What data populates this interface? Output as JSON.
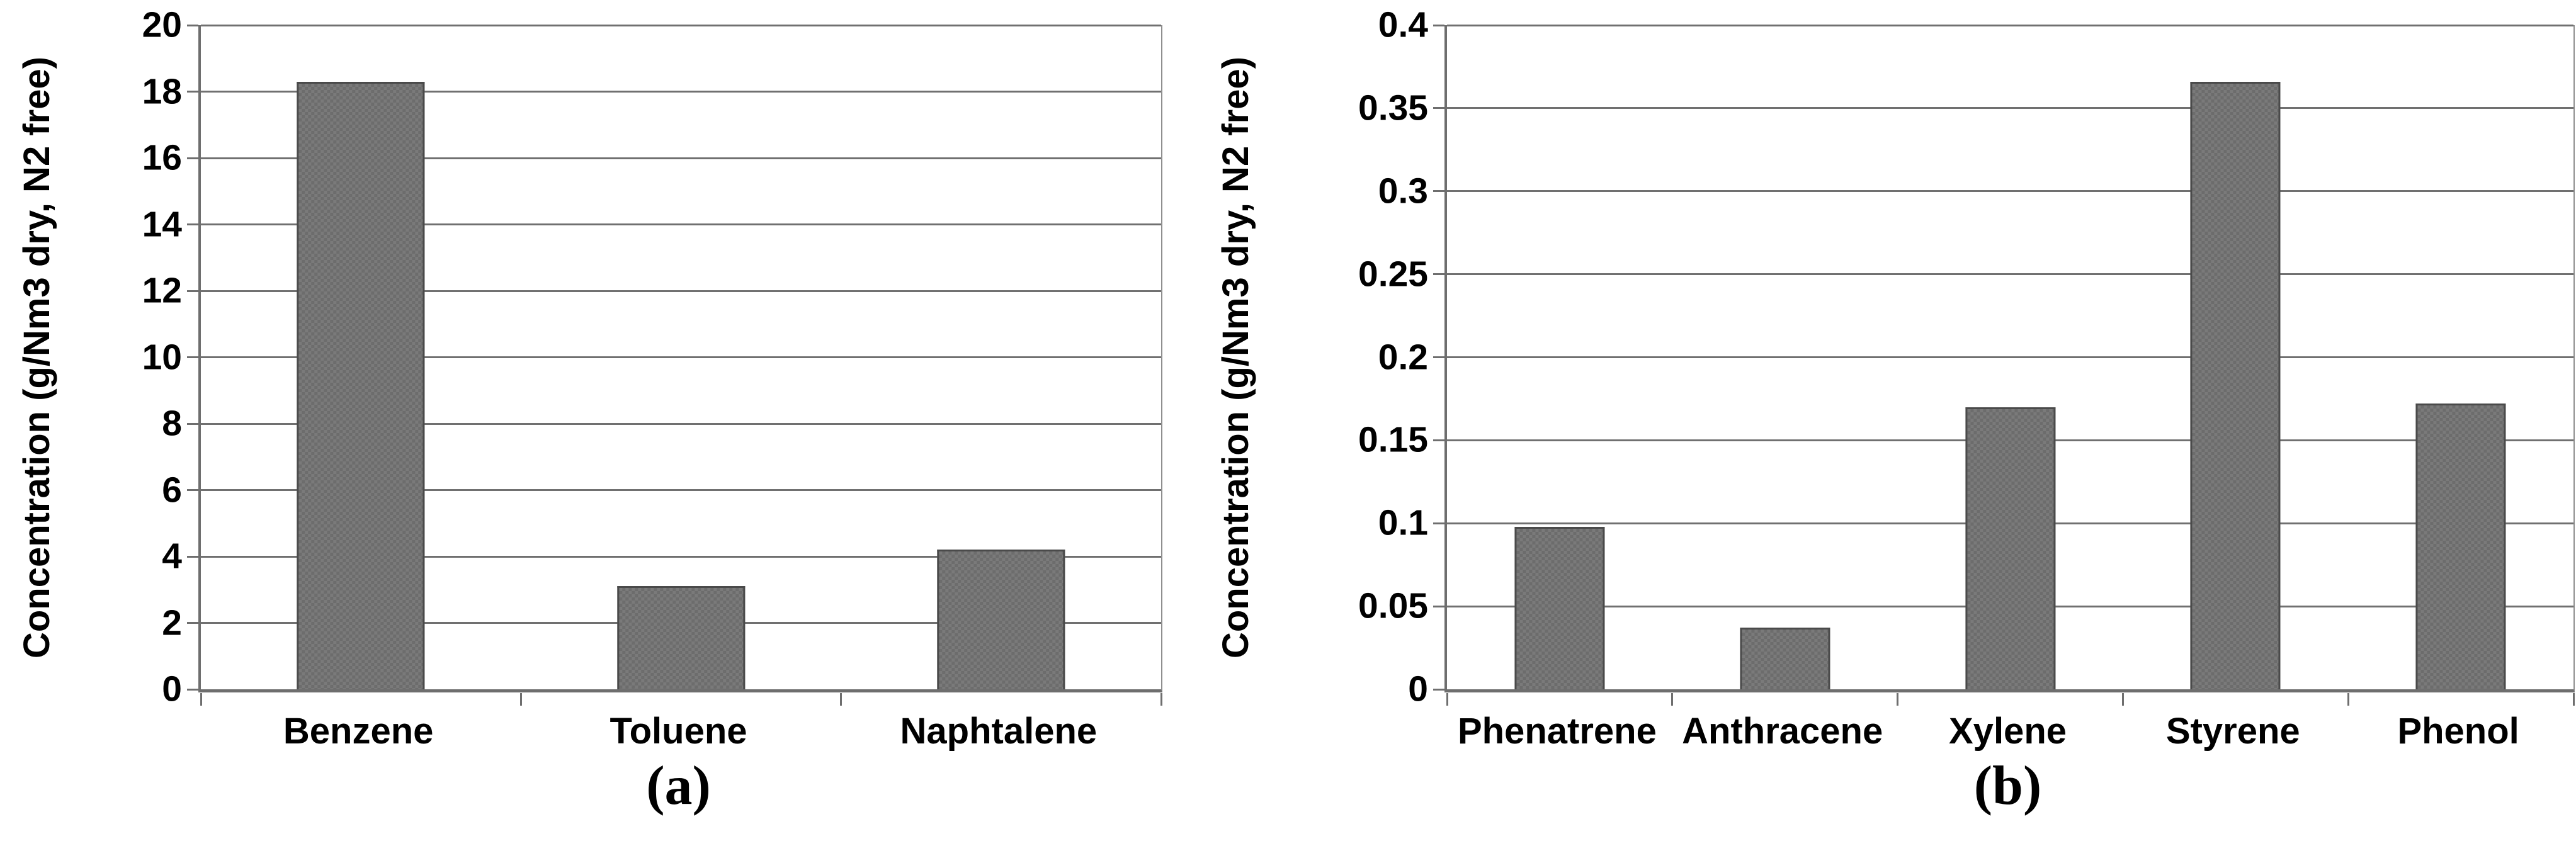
{
  "figure": {
    "background": "#ffffff",
    "bar_fill": "#7a7a7a",
    "bar_checker": "#6c6c6c",
    "bar_border": "#4a4a4a",
    "gridline_color": "#707070",
    "axis_color": "#6e6e6e",
    "text_color": "#000000"
  },
  "chart_data": [
    {
      "type": "bar",
      "panel": "a",
      "caption": "(a)",
      "title": "",
      "xlabel": "",
      "ylabel": "Concentration (g/Nm3 dry, N2 free)",
      "ylim": [
        0,
        20
      ],
      "ytick_step": 2,
      "yticks": [
        "0",
        "2",
        "4",
        "6",
        "8",
        "10",
        "12",
        "14",
        "16",
        "18",
        "20"
      ],
      "categories": [
        "Benzene",
        "Toluene",
        "Naphtalene"
      ],
      "values": [
        18.3,
        3.1,
        4.2
      ],
      "grid": true,
      "legend_position": "none"
    },
    {
      "type": "bar",
      "panel": "b",
      "caption": "(b)",
      "title": "",
      "xlabel": "",
      "ylabel": "Concentration (g/Nm3 dry, N2 free)",
      "ylim": [
        0,
        0.4
      ],
      "ytick_step": 0.05,
      "yticks": [
        "0",
        "0.05",
        "0.1",
        "0.15",
        "0.2",
        "0.25",
        "0.3",
        "0.35",
        "0.4"
      ],
      "categories": [
        "Phenatrene",
        "Anthracene",
        "Xylene",
        "Styrene",
        "Phenol"
      ],
      "values": [
        0.098,
        0.037,
        0.17,
        0.366,
        0.172
      ],
      "grid": true,
      "legend_position": "none"
    }
  ]
}
